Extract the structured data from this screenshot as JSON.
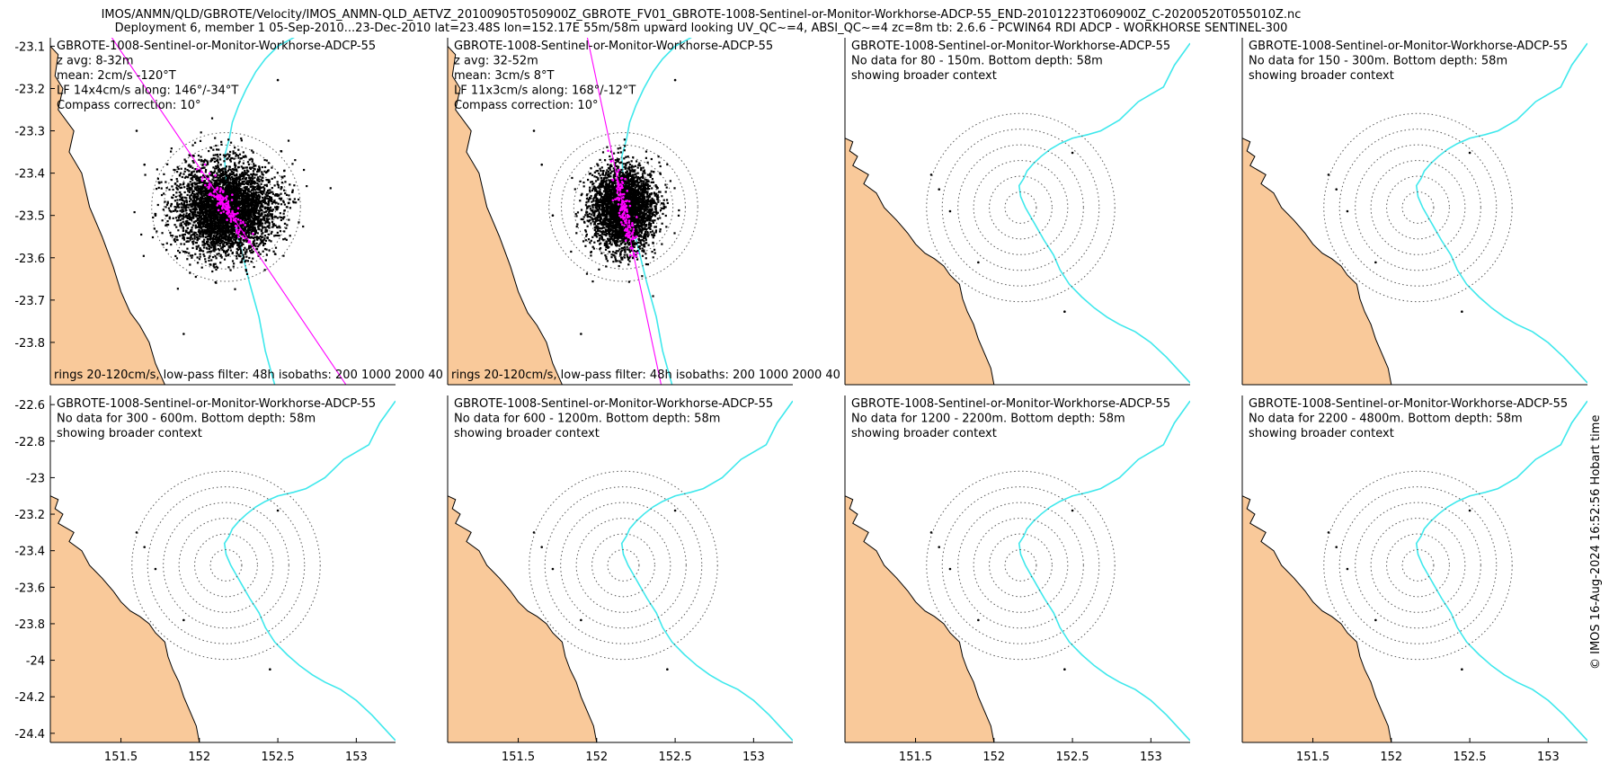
{
  "header": {
    "line1": "IMOS/ANMN/QLD/GBROTE/Velocity/IMOS_ANMN-QLD_AETVZ_20100905T050900Z_GBROTE_FV01_GBROTE-1008-Sentinel-or-Monitor-Workhorse-ADCP-55_END-20101223T060900Z_C-20200520T055010Z.nc",
    "line2": "Deployment 6, member 1 05-Sep-2010...23-Dec-2010 lat=23.48S lon=152.17E 55m/58m upward looking UV_QC~=4, ABSI_QC~=4 zc=8m tb: 2.6.6 - PCWIN64 RDI ADCP - WORKHORSE SENTINEL-300"
  },
  "copyright": "© IMOS 16-Aug-2024 16:52:56 Hobart time",
  "colors": {
    "land": "#f9c99a",
    "isobath": "#3fe8ec",
    "scatter": "#000000",
    "lowpass": "#ff00ff",
    "rings": "#555555"
  },
  "chart_data": [
    {
      "type": "scatter",
      "title_lines": [
        "GBROTE-1008-Sentinel-or-Monitor-Workhorse-ADCP-55",
        "z avg: 8-32m",
        "mean: 2cm/s -120°T",
        "LF 14x4cm/s along: 146°/-34°T",
        "Compass correction: 10°"
      ],
      "footer": "rings 20-120cm/s, low-pass filter: 48h isobaths: 200 1000 2000 40",
      "xlim": [
        151.05,
        153.25
      ],
      "ylim": [
        -23.9,
        -23.08
      ],
      "yticks": [
        -23.1,
        -23.2,
        -23.3,
        -23.4,
        -23.5,
        -23.6,
        -23.7,
        -23.8
      ],
      "xticks": [],
      "center": [
        152.17,
        -23.48
      ],
      "ring_step_deg": 0.079,
      "scatter_radius_deg": [
        0.74,
        0.22
      ],
      "scatter_center_offset": [
        0.0,
        -0.01
      ],
      "along_angle_deg": 146,
      "points": 4200,
      "has_data": true
    },
    {
      "type": "scatter",
      "title_lines": [
        "GBROTE-1008-Sentinel-or-Monitor-Workhorse-ADCP-55",
        "z avg: 32-52m",
        "mean: 3cm/s 8°T",
        "LF 11x3cm/s along: 168°/-12°T",
        "Compass correction: 10°"
      ],
      "footer": "rings 20-120cm/s, low-pass filter: 48h isobaths: 200 1000 2000 40",
      "xlim": [
        151.05,
        153.25
      ],
      "ylim": [
        -23.9,
        -23.08
      ],
      "yticks": [],
      "xticks": [],
      "center": [
        152.17,
        -23.48
      ],
      "ring_step_deg": 0.079,
      "scatter_radius_deg": [
        0.47,
        0.2
      ],
      "scatter_center_offset": [
        0.0,
        -0.01
      ],
      "along_angle_deg": 168,
      "points": 3400,
      "has_data": true
    },
    {
      "type": "map",
      "title_lines": [
        "GBROTE-1008-Sentinel-or-Monitor-Workhorse-ADCP-55",
        "No data for 80 - 150m. Bottom depth: 58m",
        "showing broader context"
      ],
      "xlim": [
        151.05,
        153.25
      ],
      "ylim": [
        -24.45,
        -22.55
      ],
      "yticks": [],
      "xticks": [],
      "center": [
        152.17,
        -23.48
      ],
      "ring_step_deg": 0.1,
      "has_data": false
    },
    {
      "type": "map",
      "title_lines": [
        "GBROTE-1008-Sentinel-or-Monitor-Workhorse-ADCP-55",
        "No data for 150 - 300m. Bottom depth: 58m",
        "showing broader context"
      ],
      "xlim": [
        151.05,
        153.25
      ],
      "ylim": [
        -24.45,
        -22.55
      ],
      "yticks": [],
      "xticks": [],
      "center": [
        152.17,
        -23.48
      ],
      "ring_step_deg": 0.1,
      "has_data": false
    },
    {
      "type": "map",
      "title_lines": [
        "GBROTE-1008-Sentinel-or-Monitor-Workhorse-ADCP-55",
        "No data for 300 - 600m. Bottom depth: 58m",
        "showing broader context"
      ],
      "xlim": [
        151.05,
        153.25
      ],
      "ylim": [
        -24.45,
        -22.55
      ],
      "yticks": [
        -22.6,
        -22.8,
        -23,
        -23.2,
        -23.4,
        -23.6,
        -23.8,
        -24,
        -24.2,
        -24.4
      ],
      "xticks": [
        151.5,
        152,
        152.5,
        153
      ],
      "center": [
        152.17,
        -23.48
      ],
      "ring_step_deg": 0.1,
      "has_data": false
    },
    {
      "type": "map",
      "title_lines": [
        "GBROTE-1008-Sentinel-or-Monitor-Workhorse-ADCP-55",
        "No data for 600 - 1200m. Bottom depth: 58m",
        "showing broader context"
      ],
      "xlim": [
        151.05,
        153.25
      ],
      "ylim": [
        -24.45,
        -22.55
      ],
      "yticks": [],
      "xticks": [
        151.5,
        152,
        152.5,
        153
      ],
      "center": [
        152.17,
        -23.48
      ],
      "ring_step_deg": 0.1,
      "has_data": false
    },
    {
      "type": "map",
      "title_lines": [
        "GBROTE-1008-Sentinel-or-Monitor-Workhorse-ADCP-55",
        "No data for 1200 - 2200m. Bottom depth: 58m",
        "showing broader context"
      ],
      "xlim": [
        151.05,
        153.25
      ],
      "ylim": [
        -24.45,
        -22.55
      ],
      "yticks": [],
      "xticks": [
        151.5,
        152,
        152.5,
        153
      ],
      "center": [
        152.17,
        -23.48
      ],
      "ring_step_deg": 0.1,
      "has_data": false
    },
    {
      "type": "map",
      "title_lines": [
        "GBROTE-1008-Sentinel-or-Monitor-Workhorse-ADCP-55",
        "No data for 2200 - 4800m. Bottom depth: 58m",
        "showing broader context"
      ],
      "xlim": [
        151.05,
        153.25
      ],
      "ylim": [
        -24.45,
        -22.55
      ],
      "yticks": [],
      "xticks": [
        151.5,
        152,
        152.5,
        153
      ],
      "center": [
        152.17,
        -23.48
      ],
      "ring_step_deg": 0.1,
      "has_data": false
    }
  ],
  "isobath_200m": [
    [
      153.25,
      -22.58
    ],
    [
      153.15,
      -22.7
    ],
    [
      153.08,
      -22.82
    ],
    [
      153.0,
      -22.86
    ],
    [
      152.92,
      -22.9
    ],
    [
      152.86,
      -22.95
    ],
    [
      152.8,
      -23.0
    ],
    [
      152.74,
      -23.03
    ],
    [
      152.68,
      -23.06
    ],
    [
      152.6,
      -23.08
    ],
    [
      152.5,
      -23.1
    ],
    [
      152.42,
      -23.13
    ],
    [
      152.36,
      -23.16
    ],
    [
      152.3,
      -23.2
    ],
    [
      152.25,
      -23.24
    ],
    [
      152.21,
      -23.28
    ],
    [
      152.19,
      -23.32
    ],
    [
      152.16,
      -23.36
    ],
    [
      152.17,
      -23.42
    ],
    [
      152.2,
      -23.48
    ],
    [
      152.24,
      -23.54
    ],
    [
      152.28,
      -23.6
    ],
    [
      152.32,
      -23.66
    ],
    [
      152.38,
      -23.74
    ],
    [
      152.42,
      -23.82
    ],
    [
      152.48,
      -23.9
    ],
    [
      152.56,
      -23.97
    ],
    [
      152.64,
      -24.03
    ],
    [
      152.72,
      -24.08
    ],
    [
      152.8,
      -24.12
    ],
    [
      152.9,
      -24.16
    ],
    [
      153.0,
      -24.22
    ],
    [
      153.1,
      -24.3
    ],
    [
      153.25,
      -24.44
    ]
  ],
  "coast": [
    [
      151.05,
      -23.1
    ],
    [
      151.1,
      -23.12
    ],
    [
      151.08,
      -23.17
    ],
    [
      151.13,
      -23.2
    ],
    [
      151.1,
      -23.25
    ],
    [
      151.2,
      -23.3
    ],
    [
      151.17,
      -23.35
    ],
    [
      151.25,
      -23.4
    ],
    [
      151.3,
      -23.48
    ],
    [
      151.38,
      -23.55
    ],
    [
      151.45,
      -23.62
    ],
    [
      151.5,
      -23.68
    ],
    [
      151.56,
      -23.73
    ],
    [
      151.62,
      -23.76
    ],
    [
      151.68,
      -23.8
    ],
    [
      151.72,
      -23.85
    ],
    [
      151.78,
      -23.9
    ],
    [
      151.8,
      -23.98
    ],
    [
      151.83,
      -24.05
    ],
    [
      151.87,
      -24.12
    ],
    [
      151.9,
      -24.2
    ],
    [
      151.94,
      -24.28
    ],
    [
      151.98,
      -24.36
    ],
    [
      152.0,
      -24.45
    ],
    [
      151.05,
      -24.45
    ]
  ]
}
